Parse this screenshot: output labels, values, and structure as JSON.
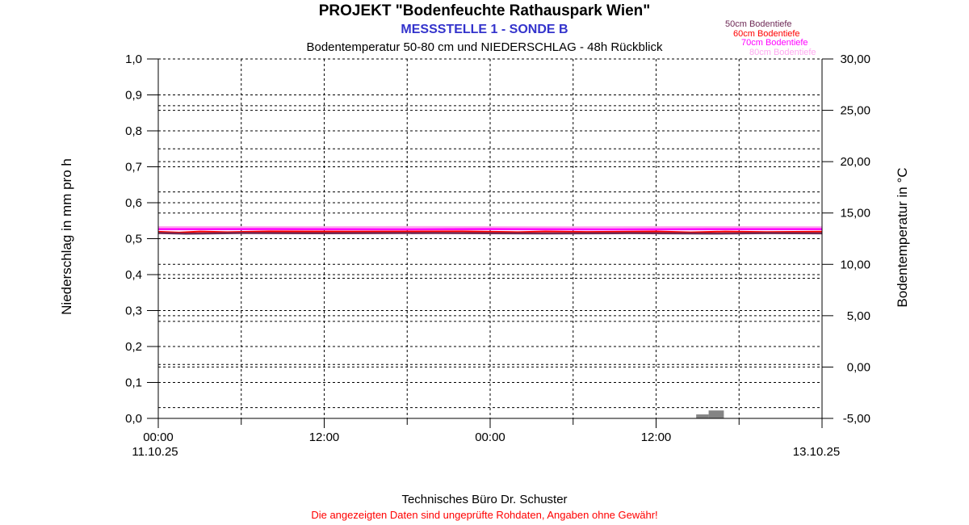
{
  "header": {
    "title": "PROJEKT \"Bodenfeuchte Rathauspark Wien\"",
    "messstelle": "MESSSTELLE 1 - SONDE B",
    "messstelle_color": "#3333CC",
    "description": "Bodentemperatur 50-80 cm und NIEDERSCHLAG - 48h Rückblick"
  },
  "legend": {
    "items": [
      {
        "label": "50cm Bodentiefe",
        "color": "#6E2A56"
      },
      {
        "label": "60cm Bodentiefe",
        "color": "#FF0000"
      },
      {
        "label": "70cm Bodentiefe",
        "color": "#FF00FF"
      },
      {
        "label": "80cm Bodentiefe",
        "color": "#FFA8F0"
      }
    ]
  },
  "footer": {
    "company": "Technisches Büro Dr. Schuster",
    "disclaimer": "Die angezeigten Daten sind ungeprüfte Rohdaten, Angaben ohne Gewähr!",
    "disclaimer_color": "#FF0000"
  },
  "chart_data": {
    "type": "line",
    "title": "Bodentemperatur 50-80 cm und NIEDERSCHLAG - 48h Rückblick",
    "x_axis": {
      "unit": "hours",
      "range": [
        0,
        48
      ],
      "major_ticks_hours": [
        0,
        12,
        24,
        36,
        48
      ],
      "minor_ticks_hours": [
        6,
        18,
        30,
        42
      ],
      "gridline_step_hours": 6,
      "time_labels": [
        {
          "hour": 0,
          "label": "00:00"
        },
        {
          "hour": 12,
          "label": "12:00"
        },
        {
          "hour": 24,
          "label": "00:00"
        },
        {
          "hour": 36,
          "label": "12:00"
        }
      ],
      "date_labels": [
        {
          "hour": 0,
          "label": "11.10.25"
        },
        {
          "hour": 48,
          "label": "13.10.25"
        }
      ]
    },
    "y_left": {
      "label": "Niederschlag in mm pro h",
      "min": 0,
      "max": 1,
      "step": 0.1,
      "tick_values": [
        1.0,
        0.9,
        0.8,
        0.7,
        0.6,
        0.5,
        0.4,
        0.3,
        0.2,
        0.1,
        0.0
      ],
      "tick_labels": [
        "1,0",
        "0,9",
        "0,8",
        "0,7",
        "0,6",
        "0,5",
        "0,4",
        "0,3",
        "0,2",
        "0,1",
        "0,0"
      ]
    },
    "y_right": {
      "label": "Bodentemperatur in °C",
      "min": -5,
      "max": 30,
      "step": 5,
      "tick_values": [
        30,
        25,
        20,
        15,
        10,
        5,
        0,
        -5
      ],
      "tick_labels": [
        "30,00",
        "25,00",
        "20,00",
        "15,00",
        "10,00",
        "5,00",
        "0,00",
        "-5,00"
      ]
    },
    "aux_gridlines_left_scale": [
      0.87,
      0.75,
      0.63,
      0.39,
      0.27,
      0.15,
      0.03
    ],
    "grid": {
      "color": "#000000",
      "dash": "3,3"
    },
    "series": [
      {
        "name": "80cm Bodentiefe",
        "axis": "right",
        "color": "#FFA8F0",
        "width": 2.5,
        "points": [
          [
            0,
            13.62
          ],
          [
            10,
            13.61
          ],
          [
            20,
            13.63
          ],
          [
            30,
            13.6
          ],
          [
            40,
            13.62
          ],
          [
            48,
            13.61
          ]
        ]
      },
      {
        "name": "70cm Bodentiefe",
        "axis": "right",
        "color": "#FF00FF",
        "width": 2.5,
        "points": [
          [
            0,
            13.42
          ],
          [
            8,
            13.43
          ],
          [
            16,
            13.41
          ],
          [
            24,
            13.43
          ],
          [
            32,
            13.4
          ],
          [
            40,
            13.42
          ],
          [
            48,
            13.42
          ]
        ]
      },
      {
        "name": "60cm Bodentiefe",
        "axis": "right",
        "color": "#FF0000",
        "width": 2,
        "points": [
          [
            0,
            13.18
          ],
          [
            1.5,
            13.1
          ],
          [
            3,
            13.2
          ],
          [
            5,
            13.14
          ],
          [
            8,
            13.22
          ],
          [
            14,
            13.2
          ],
          [
            22,
            13.22
          ],
          [
            26,
            13.14
          ],
          [
            28,
            13.21
          ],
          [
            31,
            13.16
          ],
          [
            36,
            13.21
          ],
          [
            38.5,
            13.12
          ],
          [
            41,
            13.2
          ],
          [
            44,
            13.15
          ],
          [
            48,
            13.19
          ]
        ]
      },
      {
        "name": "50cm Bodentiefe",
        "axis": "right",
        "color": "#6E2A56",
        "width": 2.5,
        "points": [
          [
            0,
            13.05
          ],
          [
            2,
            12.99
          ],
          [
            6,
            13.05
          ],
          [
            12,
            13.03
          ],
          [
            20,
            13.05
          ],
          [
            28,
            13.01
          ],
          [
            34,
            13.04
          ],
          [
            40,
            13.0
          ],
          [
            44,
            13.04
          ],
          [
            48,
            13.02
          ]
        ]
      }
    ],
    "bars": {
      "name": "Niederschlag",
      "axis": "left",
      "color": "#848484",
      "points": [
        {
          "start_hour": 38.9,
          "end_hour": 39.8,
          "value": 0.011
        },
        {
          "start_hour": 39.8,
          "end_hour": 40.9,
          "value": 0.022
        }
      ]
    }
  }
}
